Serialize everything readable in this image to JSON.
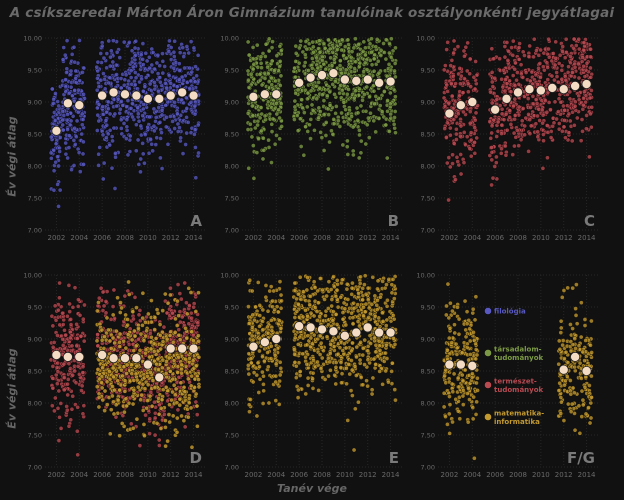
{
  "title": "A csíkszeredai Márton Áron Gimnázium tanulóinak osztályonkénti jegyátlagai",
  "xlabel": "Tanév vége",
  "ylabel": "Év végi átlag",
  "legend": [
    {
      "label": "filológia",
      "color": "#5858c0"
    },
    {
      "label": "társadalom-\ntudományok",
      "color": "#7c9a45"
    },
    {
      "label": "természet-\ntudományok",
      "color": "#b84a52"
    },
    {
      "label": "matematika-\ninformatika",
      "color": "#c39a30"
    }
  ],
  "chart_data": [
    {
      "type": "scatter",
      "panel": "A",
      "ylim": [
        7,
        10
      ],
      "xlim": [
        2001,
        2015
      ],
      "xticks": [
        2002,
        2004,
        2006,
        2008,
        2010,
        2012,
        2014
      ],
      "yticks": [
        "7.00",
        "7.50",
        "8.00",
        "8.50",
        "9.00",
        "9.50",
        "10.00"
      ],
      "series": [
        {
          "color": "#5858c0",
          "years": [
            2002,
            2003,
            2004,
            2006,
            2007,
            2008,
            2009,
            2010,
            2011,
            2012,
            2013,
            2014
          ],
          "means": [
            8.55,
            8.98,
            8.95,
            9.1,
            9.15,
            9.12,
            9.1,
            9.05,
            9.05,
            9.1,
            9.15,
            9.1
          ]
        }
      ]
    },
    {
      "type": "scatter",
      "panel": "B",
      "ylim": [
        7,
        10
      ],
      "xlim": [
        2001,
        2015
      ],
      "xticks": [
        2002,
        2004,
        2006,
        2008,
        2010,
        2012,
        2014
      ],
      "yticks": [
        "7.00",
        "7.50",
        "8.00",
        "8.50",
        "9.00",
        "9.50",
        "10.00"
      ],
      "series": [
        {
          "color": "#7c9a45",
          "years": [
            2002,
            2003,
            2004,
            2006,
            2007,
            2008,
            2009,
            2010,
            2011,
            2012,
            2013,
            2014
          ],
          "means": [
            9.08,
            9.12,
            9.12,
            9.3,
            9.38,
            9.42,
            9.45,
            9.35,
            9.33,
            9.35,
            9.3,
            9.32
          ]
        }
      ]
    },
    {
      "type": "scatter",
      "panel": "C",
      "ylim": [
        7,
        10
      ],
      "xlim": [
        2001,
        2015
      ],
      "xticks": [
        2002,
        2004,
        2006,
        2008,
        2010,
        2012,
        2014
      ],
      "yticks": [
        "7.00",
        "7.50",
        "8.00",
        "8.50",
        "9.00",
        "9.50",
        "10.00"
      ],
      "series": [
        {
          "color": "#b84a52",
          "years": [
            2002,
            2003,
            2004,
            2006,
            2007,
            2008,
            2009,
            2010,
            2011,
            2012,
            2013,
            2014
          ],
          "means": [
            8.82,
            8.95,
            9.0,
            8.88,
            9.05,
            9.15,
            9.2,
            9.18,
            9.22,
            9.2,
            9.25,
            9.28
          ]
        }
      ]
    },
    {
      "type": "scatter",
      "panel": "D",
      "ylim": [
        7,
        10
      ],
      "xlim": [
        2001,
        2015
      ],
      "xticks": [
        2002,
        2004,
        2006,
        2008,
        2010,
        2012,
        2014
      ],
      "yticks": [
        "7.00",
        "7.50",
        "8.00",
        "8.50",
        "9.00",
        "9.50",
        "10.00"
      ],
      "series": [
        {
          "color": "#b84a52",
          "years": [
            2002,
            2003,
            2004,
            2006,
            2007,
            2008,
            2009,
            2010,
            2011,
            2012,
            2013,
            2014
          ],
          "means": [
            8.75,
            8.72,
            8.72,
            8.75,
            8.7,
            8.7,
            8.7,
            8.6,
            8.4,
            8.85,
            8.85,
            8.85
          ]
        },
        {
          "color": "#c39a30",
          "years": [],
          "means": []
        }
      ]
    },
    {
      "type": "scatter",
      "panel": "E",
      "ylim": [
        7,
        10
      ],
      "xlim": [
        2001,
        2015
      ],
      "xticks": [
        2002,
        2004,
        2006,
        2008,
        2010,
        2012,
        2014
      ],
      "yticks": [
        "7.00",
        "7.50",
        "8.00",
        "8.50",
        "9.00",
        "9.50",
        "10.00"
      ],
      "series": [
        {
          "color": "#c39a30",
          "years": [
            2002,
            2003,
            2004,
            2006,
            2007,
            2008,
            2009,
            2010,
            2011,
            2012,
            2013,
            2014
          ],
          "means": [
            8.88,
            8.95,
            9.0,
            9.2,
            9.18,
            9.15,
            9.12,
            9.05,
            9.1,
            9.18,
            9.1,
            9.1
          ]
        }
      ]
    },
    {
      "type": "scatter",
      "panel": "F/G",
      "ylim": [
        7,
        10
      ],
      "xlim": [
        2001,
        2015
      ],
      "xticks": [
        2002,
        2004,
        2006,
        2008,
        2010,
        2012,
        2014
      ],
      "yticks": [
        "7.00",
        "7.50",
        "8.00",
        "8.50",
        "9.00",
        "9.50",
        "10.00"
      ],
      "series": [
        {
          "color": "#c39a30",
          "years": [
            2002,
            2003,
            2004,
            2012,
            2013,
            2014
          ],
          "means": [
            8.6,
            8.6,
            8.58,
            8.52,
            8.72,
            8.5
          ]
        }
      ]
    }
  ]
}
